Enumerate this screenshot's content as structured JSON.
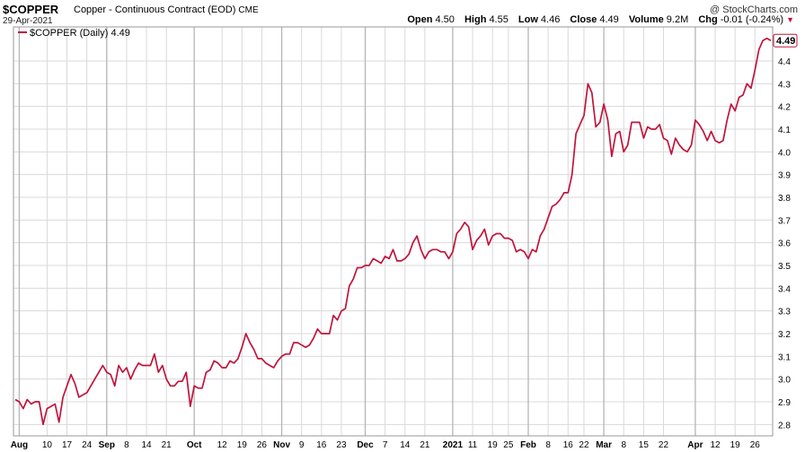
{
  "header": {
    "symbol": "$COPPER",
    "description": "Copper - Continuous Contract (EOD)",
    "exchange": "CME",
    "date": "29-Apr-2021",
    "credit": "@ StockCharts.com",
    "open_label": "Open",
    "open": "4.50",
    "high_label": "High",
    "high": "4.55",
    "low_label": "Low",
    "low": "4.46",
    "close_label": "Close",
    "close": "4.49",
    "volume_label": "Volume",
    "volume": "9.2M",
    "chg_label": "Chg",
    "chg": "-0.01 (-0.24%)"
  },
  "colors": {
    "line": "#c0143c",
    "grid": "#d9d9d9",
    "down": "#c0143c"
  },
  "chart_data": {
    "type": "line",
    "legend": "$COPPER (Daily) 4.49",
    "last_value_label": "4.49",
    "ylim": [
      2.75,
      4.55
    ],
    "yticks": [
      2.8,
      2.9,
      3.0,
      3.1,
      3.2,
      3.3,
      3.4,
      3.5,
      3.6,
      3.7,
      3.8,
      3.9,
      4.0,
      4.1,
      4.2,
      4.3,
      4.4
    ],
    "ytick_labels": [
      "2.8",
      "2.9",
      "3.0",
      "3.1",
      "3.2",
      "3.3",
      "3.4",
      "3.5",
      "3.6",
      "3.7",
      "3.8",
      "3.9",
      "4.0",
      "4.1",
      "4.2",
      "4.3",
      "4.4"
    ],
    "x_ticks": [
      {
        "label": "Aug",
        "i": 1,
        "bold": true
      },
      {
        "label": "10",
        "i": 8
      },
      {
        "label": "17",
        "i": 13
      },
      {
        "label": "24",
        "i": 18
      },
      {
        "label": "Sep",
        "i": 23,
        "bold": true
      },
      {
        "label": "8",
        "i": 28
      },
      {
        "label": "14",
        "i": 33
      },
      {
        "label": "21",
        "i": 38
      },
      {
        "label": "Oct",
        "i": 45,
        "bold": true
      },
      {
        "label": "12",
        "i": 52
      },
      {
        "label": "19",
        "i": 57
      },
      {
        "label": "26",
        "i": 62
      },
      {
        "label": "Nov",
        "i": 67,
        "bold": true
      },
      {
        "label": "9",
        "i": 72
      },
      {
        "label": "16",
        "i": 77
      },
      {
        "label": "23",
        "i": 82
      },
      {
        "label": "Dec",
        "i": 88,
        "bold": true
      },
      {
        "label": "7",
        "i": 93
      },
      {
        "label": "14",
        "i": 98
      },
      {
        "label": "21",
        "i": 103
      },
      {
        "label": "2021",
        "i": 110,
        "bold": true
      },
      {
        "label": "11",
        "i": 115
      },
      {
        "label": "19",
        "i": 120
      },
      {
        "label": "25",
        "i": 124
      },
      {
        "label": "Feb",
        "i": 129,
        "bold": true
      },
      {
        "label": "8",
        "i": 134
      },
      {
        "label": "16",
        "i": 139
      },
      {
        "label": "22",
        "i": 143
      },
      {
        "label": "Mar",
        "i": 148,
        "bold": true
      },
      {
        "label": "8",
        "i": 153
      },
      {
        "label": "15",
        "i": 158
      },
      {
        "label": "22",
        "i": 163
      },
      {
        "label": "Apr",
        "i": 171,
        "bold": true
      },
      {
        "label": "12",
        "i": 176
      },
      {
        "label": "19",
        "i": 181
      },
      {
        "label": "26",
        "i": 186
      }
    ],
    "values": [
      2.91,
      2.9,
      2.87,
      2.91,
      2.89,
      2.9,
      2.9,
      2.8,
      2.87,
      2.88,
      2.89,
      2.81,
      2.92,
      2.97,
      3.02,
      2.98,
      2.92,
      2.93,
      2.94,
      2.97,
      3.0,
      3.03,
      3.06,
      3.03,
      3.02,
      2.97,
      3.06,
      3.03,
      3.05,
      3.0,
      3.04,
      3.07,
      3.06,
      3.06,
      3.06,
      3.11,
      3.03,
      3.06,
      3.0,
      2.97,
      2.97,
      2.99,
      2.99,
      3.03,
      2.88,
      2.97,
      2.96,
      2.96,
      3.03,
      3.04,
      3.08,
      3.07,
      3.05,
      3.05,
      3.08,
      3.07,
      3.09,
      3.14,
      3.2,
      3.16,
      3.13,
      3.09,
      3.09,
      3.07,
      3.06,
      3.05,
      3.08,
      3.1,
      3.11,
      3.11,
      3.16,
      3.16,
      3.15,
      3.14,
      3.15,
      3.18,
      3.22,
      3.2,
      3.2,
      3.2,
      3.28,
      3.26,
      3.3,
      3.31,
      3.41,
      3.44,
      3.49,
      3.49,
      3.5,
      3.5,
      3.53,
      3.52,
      3.51,
      3.54,
      3.53,
      3.57,
      3.52,
      3.52,
      3.53,
      3.55,
      3.6,
      3.63,
      3.57,
      3.53,
      3.56,
      3.57,
      3.57,
      3.56,
      3.56,
      3.53,
      3.56,
      3.64,
      3.66,
      3.69,
      3.67,
      3.57,
      3.61,
      3.63,
      3.66,
      3.59,
      3.63,
      3.64,
      3.64,
      3.62,
      3.62,
      3.61,
      3.56,
      3.57,
      3.56,
      3.53,
      3.57,
      3.56,
      3.63,
      3.66,
      3.71,
      3.76,
      3.77,
      3.79,
      3.82,
      3.82,
      3.9,
      4.08,
      4.12,
      4.16,
      4.3,
      4.26,
      4.11,
      4.13,
      4.21,
      4.14,
      3.98,
      4.08,
      4.09,
      4.0,
      4.03,
      4.13,
      4.13,
      4.13,
      4.06,
      4.11,
      4.1,
      4.1,
      4.12,
      4.06,
      4.05,
      3.99,
      4.06,
      4.03,
      4.01,
      4.0,
      4.03,
      4.14,
      4.12,
      4.09,
      4.05,
      4.09,
      4.05,
      4.04,
      4.05,
      4.14,
      4.21,
      4.18,
      4.24,
      4.25,
      4.3,
      4.28,
      4.36,
      4.45,
      4.49,
      4.5,
      4.49
    ]
  }
}
